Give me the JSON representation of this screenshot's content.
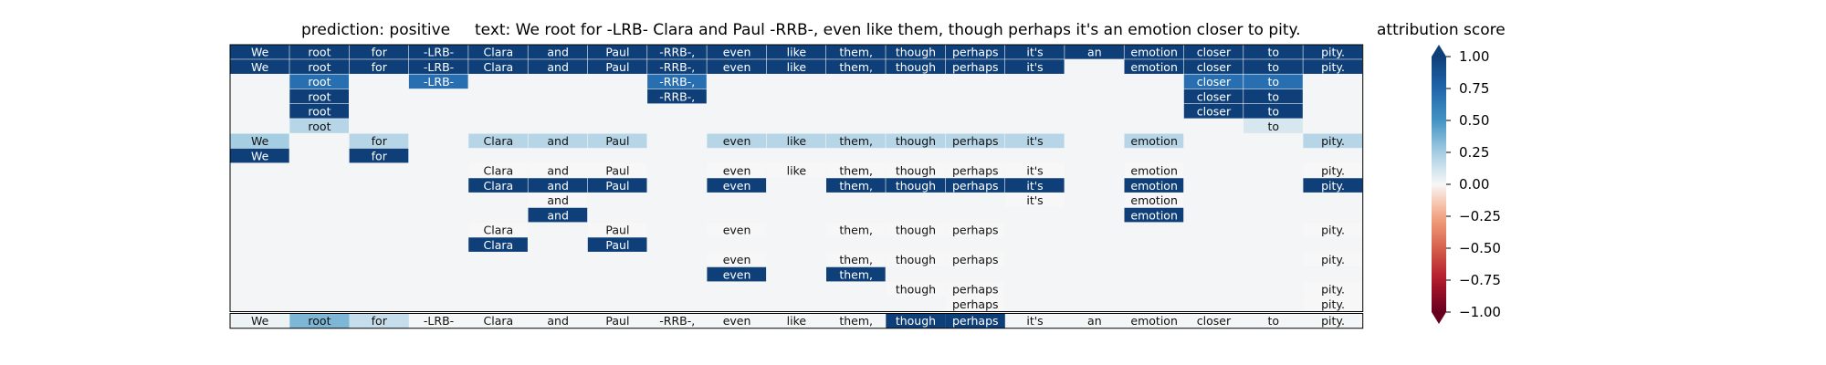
{
  "titles": {
    "prediction": "prediction:  positive",
    "text": "text:  We root for -LRB- Clara and Paul -RRB-, even like them, though perhaps it's an emotion closer to pity.",
    "attribution": "attribution score"
  },
  "chart_data": {
    "type": "heatmap",
    "tokens": [
      "We",
      "root",
      "for",
      "-LRB-",
      "Clara",
      "and",
      "Paul",
      "-RRB-,",
      "even",
      "like",
      "them,",
      "though",
      "perhaps",
      "it's",
      "an",
      "emotion",
      "closer",
      "to",
      "pity."
    ],
    "rows": [
      [
        1,
        1,
        1,
        1,
        1,
        1,
        1,
        1,
        1,
        1,
        1,
        1,
        1,
        1,
        1,
        1,
        1,
        1,
        1
      ],
      [
        1,
        1,
        1,
        1,
        1,
        1,
        1,
        1,
        1,
        1,
        1,
        1,
        1,
        1,
        null,
        1,
        1,
        1,
        1
      ],
      [
        null,
        0.7,
        null,
        0.7,
        null,
        null,
        null,
        0.7,
        null,
        null,
        null,
        null,
        null,
        null,
        null,
        null,
        0.7,
        0.7,
        null
      ],
      [
        null,
        1,
        null,
        null,
        null,
        null,
        null,
        1,
        null,
        null,
        null,
        null,
        null,
        null,
        null,
        null,
        1,
        1,
        null
      ],
      [
        null,
        1,
        null,
        null,
        null,
        null,
        null,
        null,
        null,
        null,
        null,
        null,
        null,
        null,
        null,
        null,
        1,
        1,
        null
      ],
      [
        null,
        0.2,
        null,
        null,
        null,
        null,
        null,
        null,
        null,
        null,
        null,
        null,
        null,
        null,
        null,
        null,
        null,
        0.1,
        null
      ],
      [
        0.25,
        null,
        0.2,
        null,
        0.2,
        0.2,
        0.2,
        null,
        0.2,
        0.2,
        0.2,
        0.2,
        0.2,
        0.2,
        null,
        0.2,
        null,
        null,
        0.2
      ],
      [
        1,
        null,
        1,
        null,
        null,
        null,
        null,
        null,
        null,
        null,
        null,
        null,
        null,
        null,
        null,
        null,
        null,
        null,
        null
      ],
      [
        null,
        null,
        null,
        null,
        0,
        0,
        0,
        null,
        0,
        0,
        0,
        0,
        0,
        0,
        null,
        0,
        null,
        null,
        0
      ],
      [
        null,
        null,
        null,
        null,
        1,
        1,
        1,
        null,
        1,
        null,
        1,
        1,
        1,
        1,
        null,
        1,
        null,
        null,
        1
      ],
      [
        null,
        null,
        null,
        null,
        null,
        0,
        null,
        null,
        null,
        null,
        null,
        null,
        null,
        0,
        null,
        0,
        null,
        null,
        null
      ],
      [
        null,
        null,
        null,
        null,
        null,
        1,
        null,
        null,
        null,
        null,
        null,
        null,
        null,
        null,
        null,
        1,
        null,
        null,
        null
      ],
      [
        null,
        null,
        null,
        null,
        0,
        null,
        0,
        null,
        0,
        null,
        0,
        0,
        0,
        null,
        null,
        null,
        null,
        null,
        0
      ],
      [
        null,
        null,
        null,
        null,
        1,
        null,
        1,
        null,
        null,
        null,
        null,
        null,
        null,
        null,
        null,
        null,
        null,
        null,
        null
      ],
      [
        null,
        null,
        null,
        null,
        null,
        null,
        null,
        null,
        0,
        null,
        0,
        0,
        0,
        null,
        null,
        null,
        null,
        null,
        0
      ],
      [
        null,
        null,
        null,
        null,
        null,
        null,
        null,
        null,
        1,
        null,
        1,
        null,
        null,
        null,
        null,
        null,
        null,
        null,
        null
      ],
      [
        null,
        null,
        null,
        null,
        null,
        null,
        null,
        null,
        null,
        null,
        null,
        0,
        0,
        null,
        null,
        null,
        null,
        null,
        0
      ],
      [
        null,
        null,
        null,
        null,
        null,
        null,
        null,
        null,
        null,
        null,
        null,
        null,
        0,
        null,
        null,
        null,
        null,
        null,
        0
      ]
    ],
    "attribution": [
      0.03,
      0.35,
      0.15,
      0,
      0,
      0,
      0,
      0,
      0,
      0,
      0,
      1,
      1,
      0,
      0,
      0,
      0,
      0,
      0
    ],
    "colorbar": {
      "range": [
        -1,
        1
      ],
      "ticks": [
        "1.00",
        "0.75",
        "0.50",
        "0.25",
        "0.00",
        "−0.25",
        "−0.50",
        "−0.75",
        "−1.00"
      ],
      "colormap": "RdBu"
    }
  }
}
